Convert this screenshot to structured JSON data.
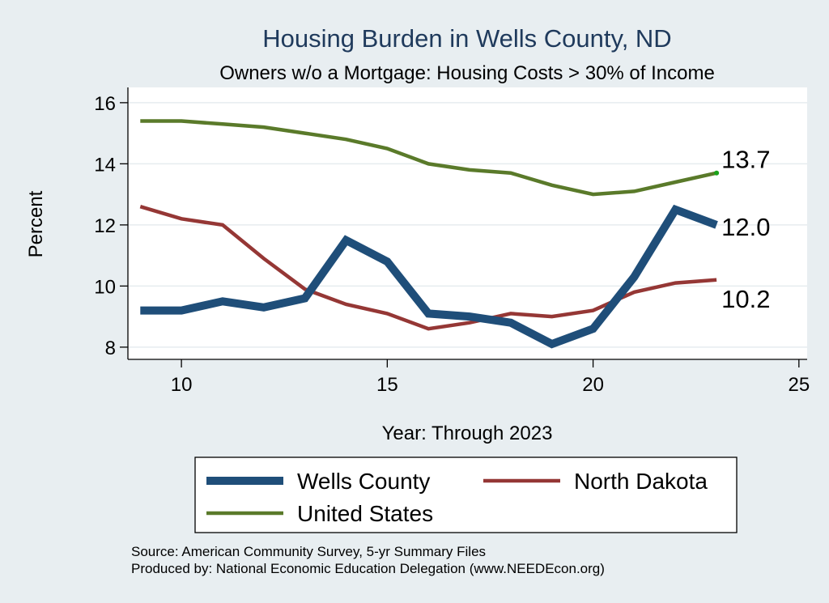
{
  "chart_data": {
    "type": "line",
    "title": "Housing Burden in Wells County, ND",
    "subtitle": "Owners w/o a Mortgage: Housing Costs > 30% of Income",
    "xlabel": "Year: Through 2023",
    "ylabel": "Percent",
    "xlim": [
      8.7,
      25.2
    ],
    "ylim": [
      7.6,
      16.5
    ],
    "xticks": [
      10,
      15,
      20,
      25
    ],
    "yticks": [
      8,
      10,
      12,
      14,
      16
    ],
    "grid": true,
    "legend_position": "bottom",
    "x": [
      9,
      10,
      11,
      12,
      13,
      14,
      15,
      16,
      17,
      18,
      19,
      20,
      21,
      22,
      23
    ],
    "series": [
      {
        "name": "Wells County",
        "color": "#1f4e79",
        "values": [
          9.2,
          9.2,
          9.5,
          9.3,
          9.6,
          11.5,
          10.8,
          9.1,
          9.0,
          8.8,
          8.1,
          8.6,
          10.3,
          12.5,
          12.0
        ],
        "end_label": "12.0"
      },
      {
        "name": "North Dakota",
        "color": "#953735",
        "values": [
          12.6,
          12.2,
          12.0,
          10.9,
          9.9,
          9.4,
          9.1,
          8.6,
          8.8,
          9.1,
          9.0,
          9.2,
          9.8,
          10.1,
          10.2
        ],
        "end_label": "10.2"
      },
      {
        "name": "United States",
        "color": "#5a7a2a",
        "values": [
          15.4,
          15.4,
          15.3,
          15.2,
          15.0,
          14.8,
          14.5,
          14.0,
          13.8,
          13.7,
          13.3,
          13.0,
          13.1,
          13.4,
          13.7
        ],
        "end_label": "13.7"
      }
    ],
    "notes": [
      "Source: American Community Survey, 5-yr Summary Files",
      "Produced by: National Economic Education Delegation (www.NEEDEcon.org)"
    ]
  }
}
